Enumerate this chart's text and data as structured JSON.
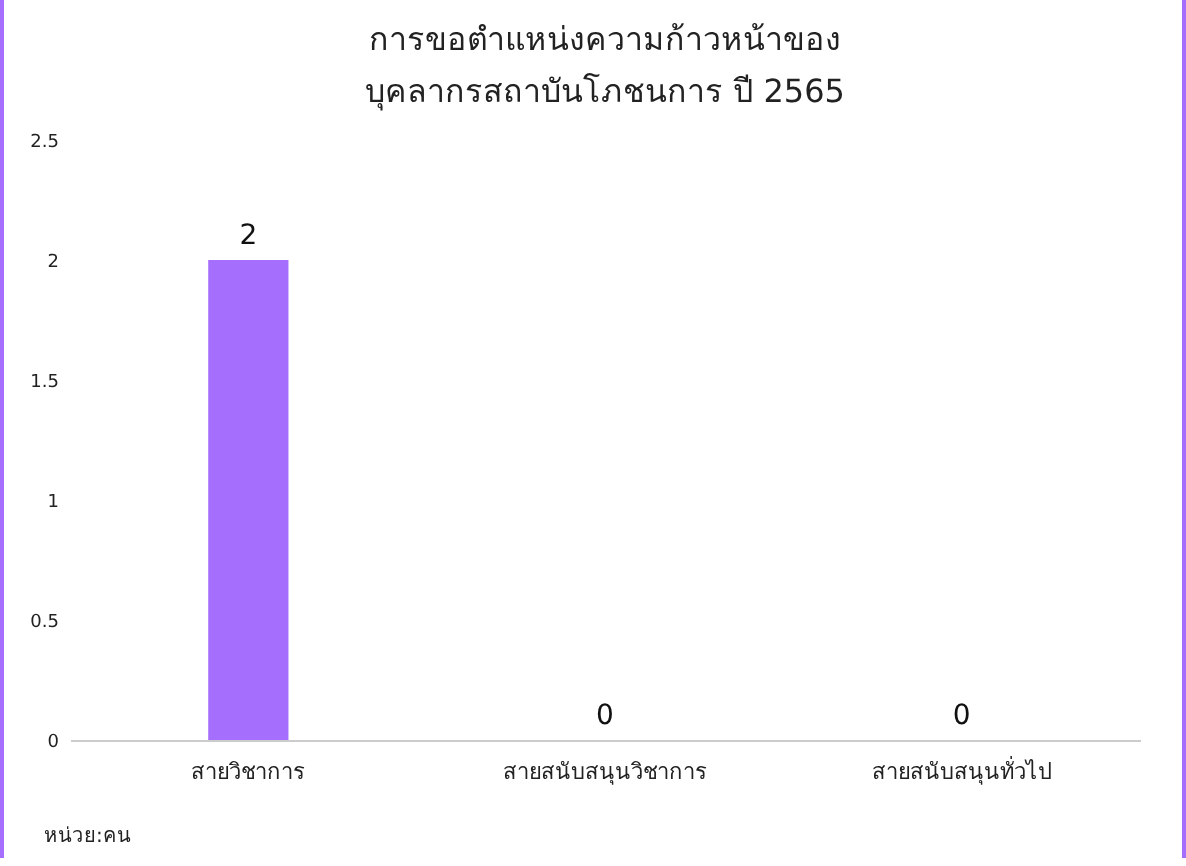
{
  "chart_data": {
    "type": "bar",
    "title": "การขอตำแหน่งความก้าวหน้าของ\nบุคลากรสถาบันโภชนการ ปี 2565",
    "categories": [
      "สายวิชาการ",
      "สายสนับสนุนวิชาการ",
      "สายสนับสนุนทั่วไป"
    ],
    "values": [
      2,
      0,
      0
    ],
    "color": "#a66efc",
    "ylim": [
      0,
      2.5
    ],
    "yticks": [
      0,
      0.5,
      1,
      1.5,
      2,
      2.5
    ],
    "grid": false,
    "data_labels": true,
    "annotations": [
      "หน่วย:คน"
    ]
  }
}
